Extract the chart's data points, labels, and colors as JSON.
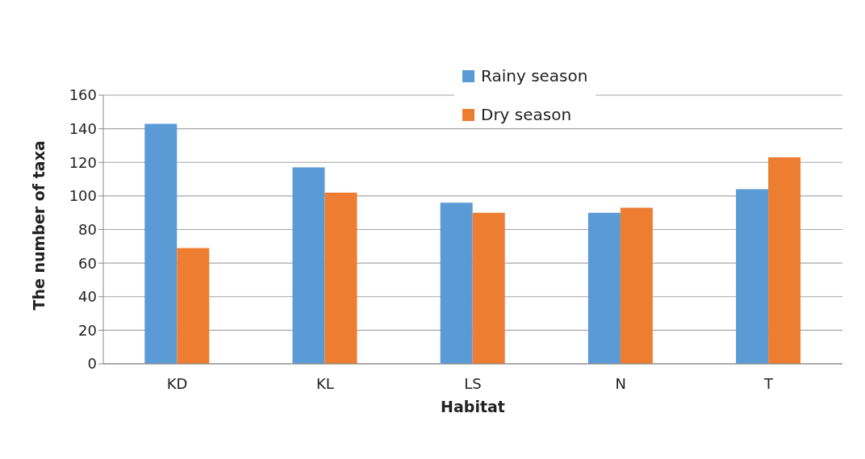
{
  "chart_data": {
    "type": "bar",
    "xlabel": "Habitat",
    "ylabel": "The number of taxa",
    "categories": [
      "KD",
      "KL",
      "LS",
      "N",
      "T"
    ],
    "series": [
      {
        "name": "Rainy season",
        "color": "#5b9bd5",
        "values": [
          143,
          117,
          96,
          90,
          104
        ]
      },
      {
        "name": "Dry season",
        "color": "#ed7d31",
        "values": [
          69,
          102,
          90,
          93,
          123
        ]
      }
    ],
    "ylim": [
      0,
      160
    ],
    "yticks": [
      0,
      20,
      40,
      60,
      80,
      100,
      120,
      140,
      160
    ],
    "grid": "y",
    "legend": "top"
  }
}
